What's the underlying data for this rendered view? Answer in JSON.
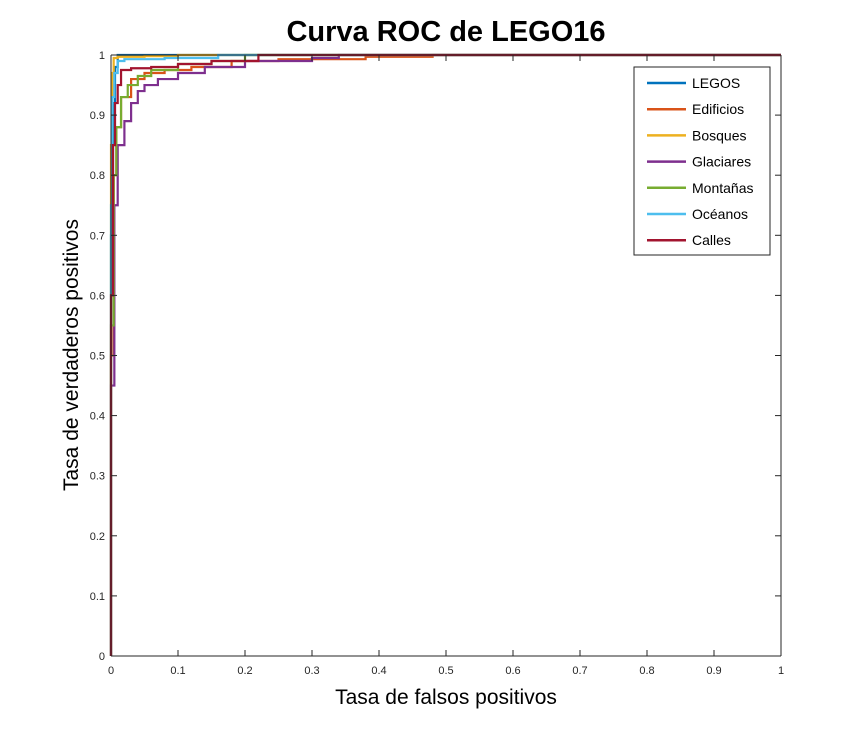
{
  "chart_data": {
    "type": "line",
    "title": "Curva ROC de LEGO16",
    "xlabel": "Tasa de falsos positivos",
    "ylabel": "Tasa de verdaderos positivos",
    "xlim": [
      0,
      1
    ],
    "ylim": [
      0,
      1
    ],
    "xticks": [
      "0",
      "0.1",
      "0.2",
      "0.3",
      "0.4",
      "0.5",
      "0.6",
      "0.7",
      "0.8",
      "0.9",
      "1"
    ],
    "yticks": [
      "0",
      "0.1",
      "0.2",
      "0.3",
      "0.4",
      "0.5",
      "0.6",
      "0.7",
      "0.8",
      "0.9",
      "1"
    ],
    "grid": false,
    "legend_position": "top-right",
    "series": [
      {
        "name": "LEGOS",
        "color": "#0072BD",
        "x": [
          0,
          0,
          0.003,
          0.006,
          0.01,
          1
        ],
        "y": [
          0,
          0.7,
          0.92,
          0.98,
          1,
          1
        ]
      },
      {
        "name": "Edificios",
        "color": "#D95319",
        "x": [
          0,
          0,
          0.004,
          0.008,
          0.015,
          0.03,
          0.05,
          0.08,
          0.12,
          0.18,
          0.25,
          0.38,
          0.48,
          0.48,
          1
        ],
        "y": [
          0,
          0.5,
          0.8,
          0.88,
          0.93,
          0.96,
          0.97,
          0.975,
          0.98,
          0.99,
          0.993,
          0.997,
          0.998,
          1,
          1
        ]
      },
      {
        "name": "Bosques",
        "color": "#EDB120",
        "x": [
          0,
          0,
          0.002,
          0.004,
          0.01,
          0.05,
          0.1,
          0.1,
          1
        ],
        "y": [
          0,
          0.85,
          0.97,
          0.995,
          0.997,
          0.998,
          0.999,
          1,
          1
        ]
      },
      {
        "name": "Glaciares",
        "color": "#7E2F8E",
        "x": [
          0,
          0,
          0.005,
          0.01,
          0.02,
          0.03,
          0.04,
          0.05,
          0.07,
          0.1,
          0.14,
          0.2,
          0.3,
          0.34,
          0.34,
          1
        ],
        "y": [
          0,
          0.45,
          0.75,
          0.85,
          0.89,
          0.92,
          0.94,
          0.95,
          0.96,
          0.97,
          0.98,
          0.99,
          0.995,
          0.998,
          1,
          1
        ]
      },
      {
        "name": "Montañas",
        "color": "#77AC30",
        "x": [
          0,
          0,
          0.004,
          0.008,
          0.015,
          0.025,
          0.04,
          0.06,
          0.1,
          0.15,
          0.2,
          0.2,
          1
        ],
        "y": [
          0,
          0.55,
          0.8,
          0.88,
          0.93,
          0.95,
          0.965,
          0.975,
          0.985,
          0.99,
          0.995,
          1,
          1
        ]
      },
      {
        "name": "Océanos",
        "color": "#4DBEEE",
        "x": [
          0,
          0,
          0.002,
          0.005,
          0.01,
          0.02,
          0.08,
          0.16,
          0.16,
          1
        ],
        "y": [
          0,
          0.75,
          0.93,
          0.97,
          0.99,
          0.993,
          0.995,
          0.998,
          1,
          1
        ]
      },
      {
        "name": "Calles",
        "color": "#A2142F",
        "x": [
          0,
          0,
          0.003,
          0.006,
          0.01,
          0.015,
          0.03,
          0.06,
          0.1,
          0.15,
          0.22,
          0.22,
          1
        ],
        "y": [
          0,
          0.6,
          0.85,
          0.92,
          0.95,
          0.975,
          0.978,
          0.98,
          0.985,
          0.99,
          0.995,
          1,
          1
        ]
      }
    ]
  }
}
